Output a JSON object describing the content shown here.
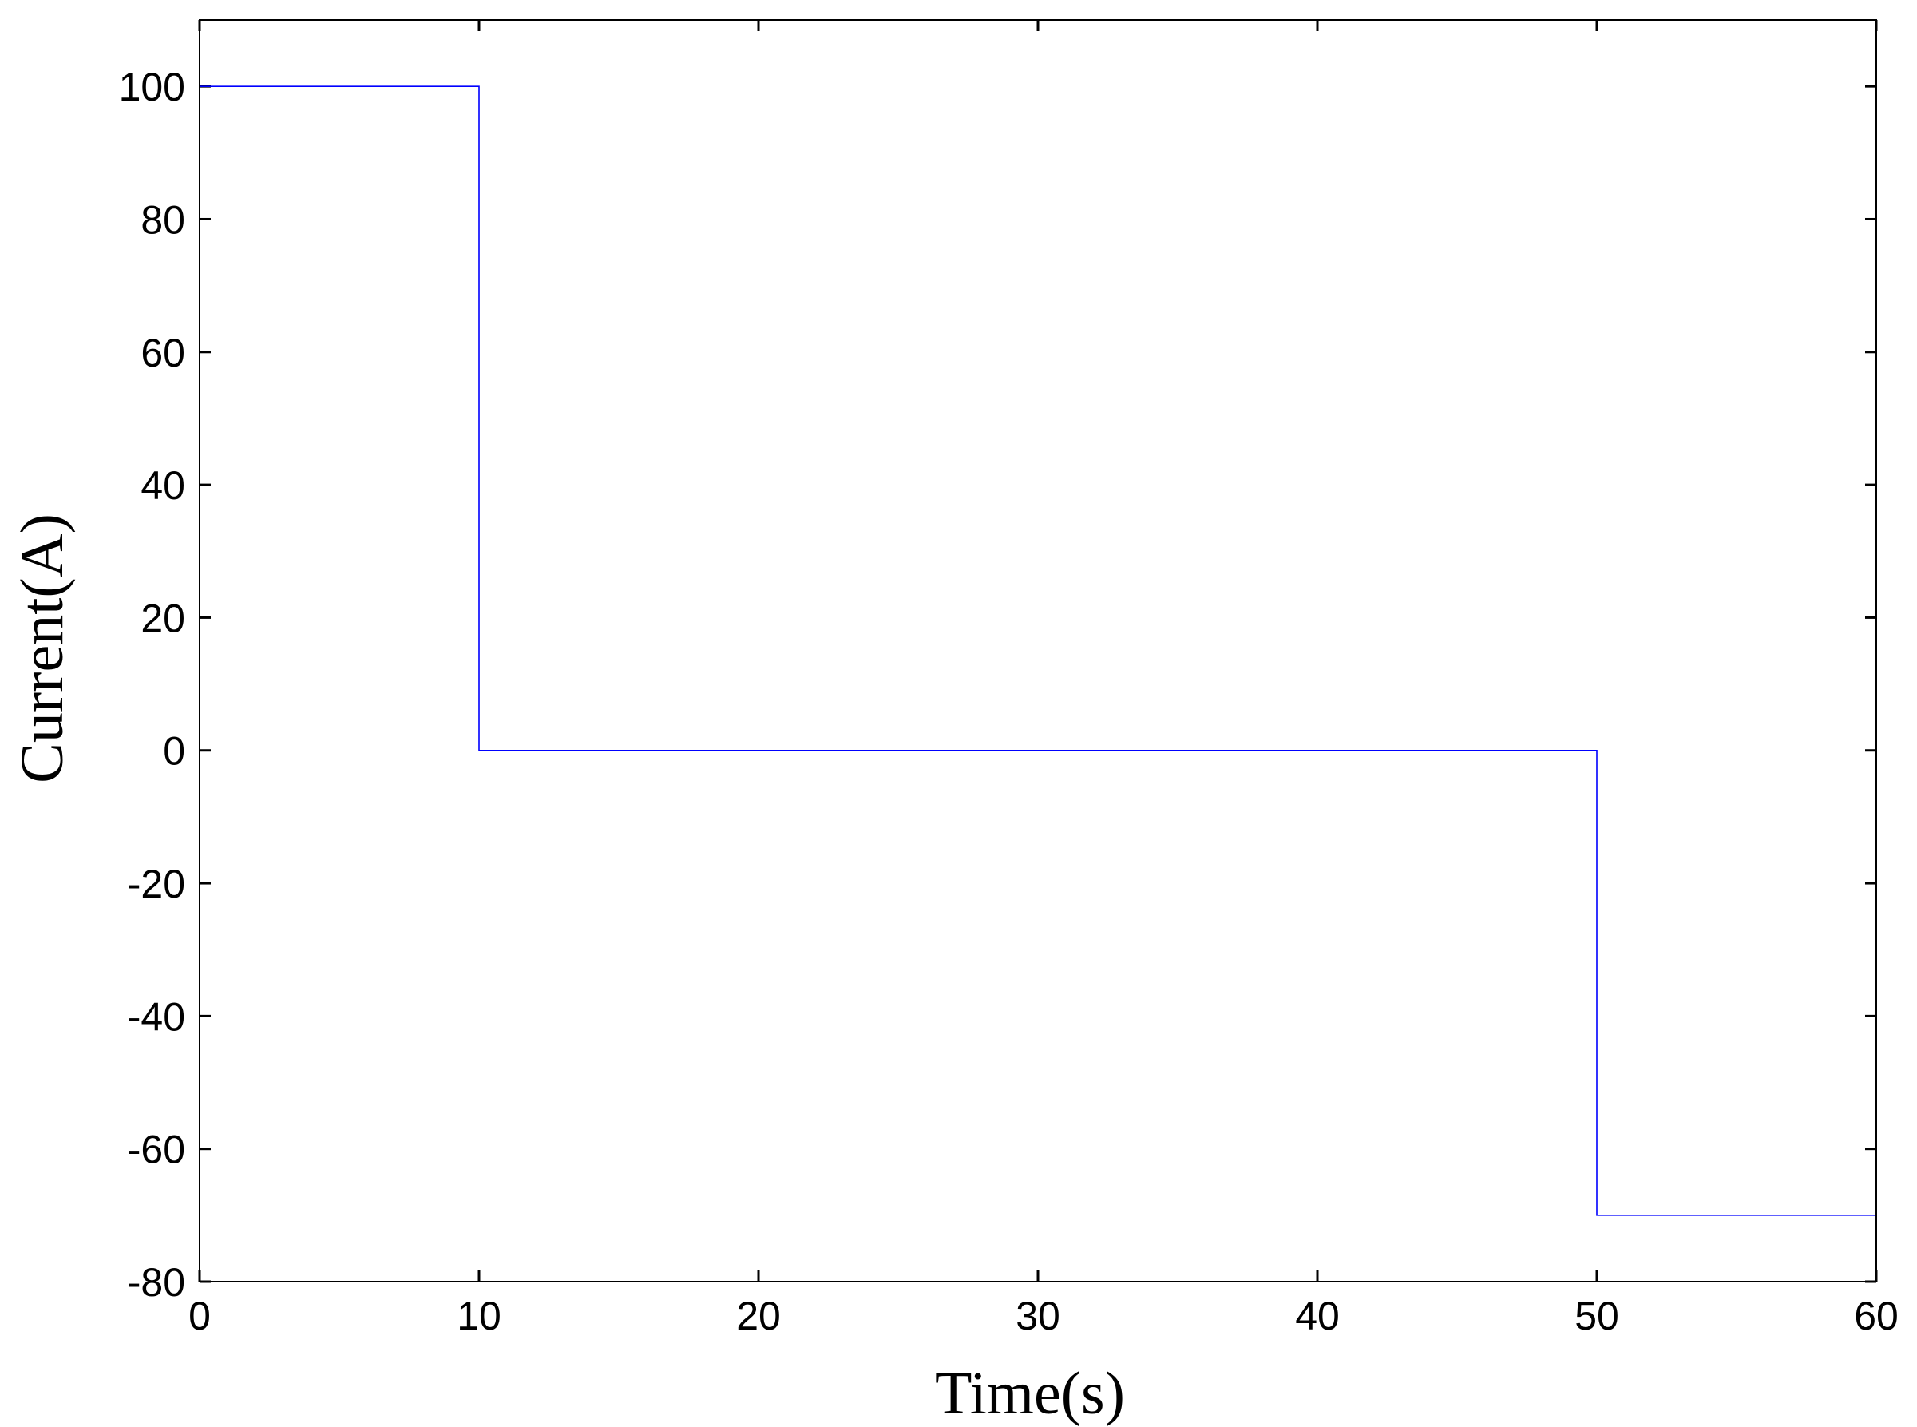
{
  "colors": {
    "series": "#0000ff",
    "axes": "#000000",
    "background": "#ffffff"
  },
  "chart_data": {
    "type": "line",
    "line_shape": "step",
    "title": "",
    "xlabel": "Time(s)",
    "ylabel": "Current(A)",
    "xlim": [
      0,
      60
    ],
    "ylim": [
      -80,
      110
    ],
    "xticks": [
      0,
      10,
      20,
      30,
      40,
      50,
      60
    ],
    "yticks": [
      -80,
      -60,
      -40,
      -20,
      0,
      20,
      40,
      60,
      80,
      100
    ],
    "xtick_labels": [
      "0",
      "10",
      "20",
      "30",
      "40",
      "50",
      "60"
    ],
    "ytick_labels": [
      "-80",
      "-60",
      "-40",
      "-20",
      "0",
      "20",
      "40",
      "60",
      "80",
      "100"
    ],
    "grid": false,
    "legend": "none",
    "series": [
      {
        "x": [
          0,
          10,
          10,
          50,
          50,
          60
        ],
        "y": [
          100,
          100,
          0,
          0,
          -70,
          -70
        ]
      }
    ]
  }
}
